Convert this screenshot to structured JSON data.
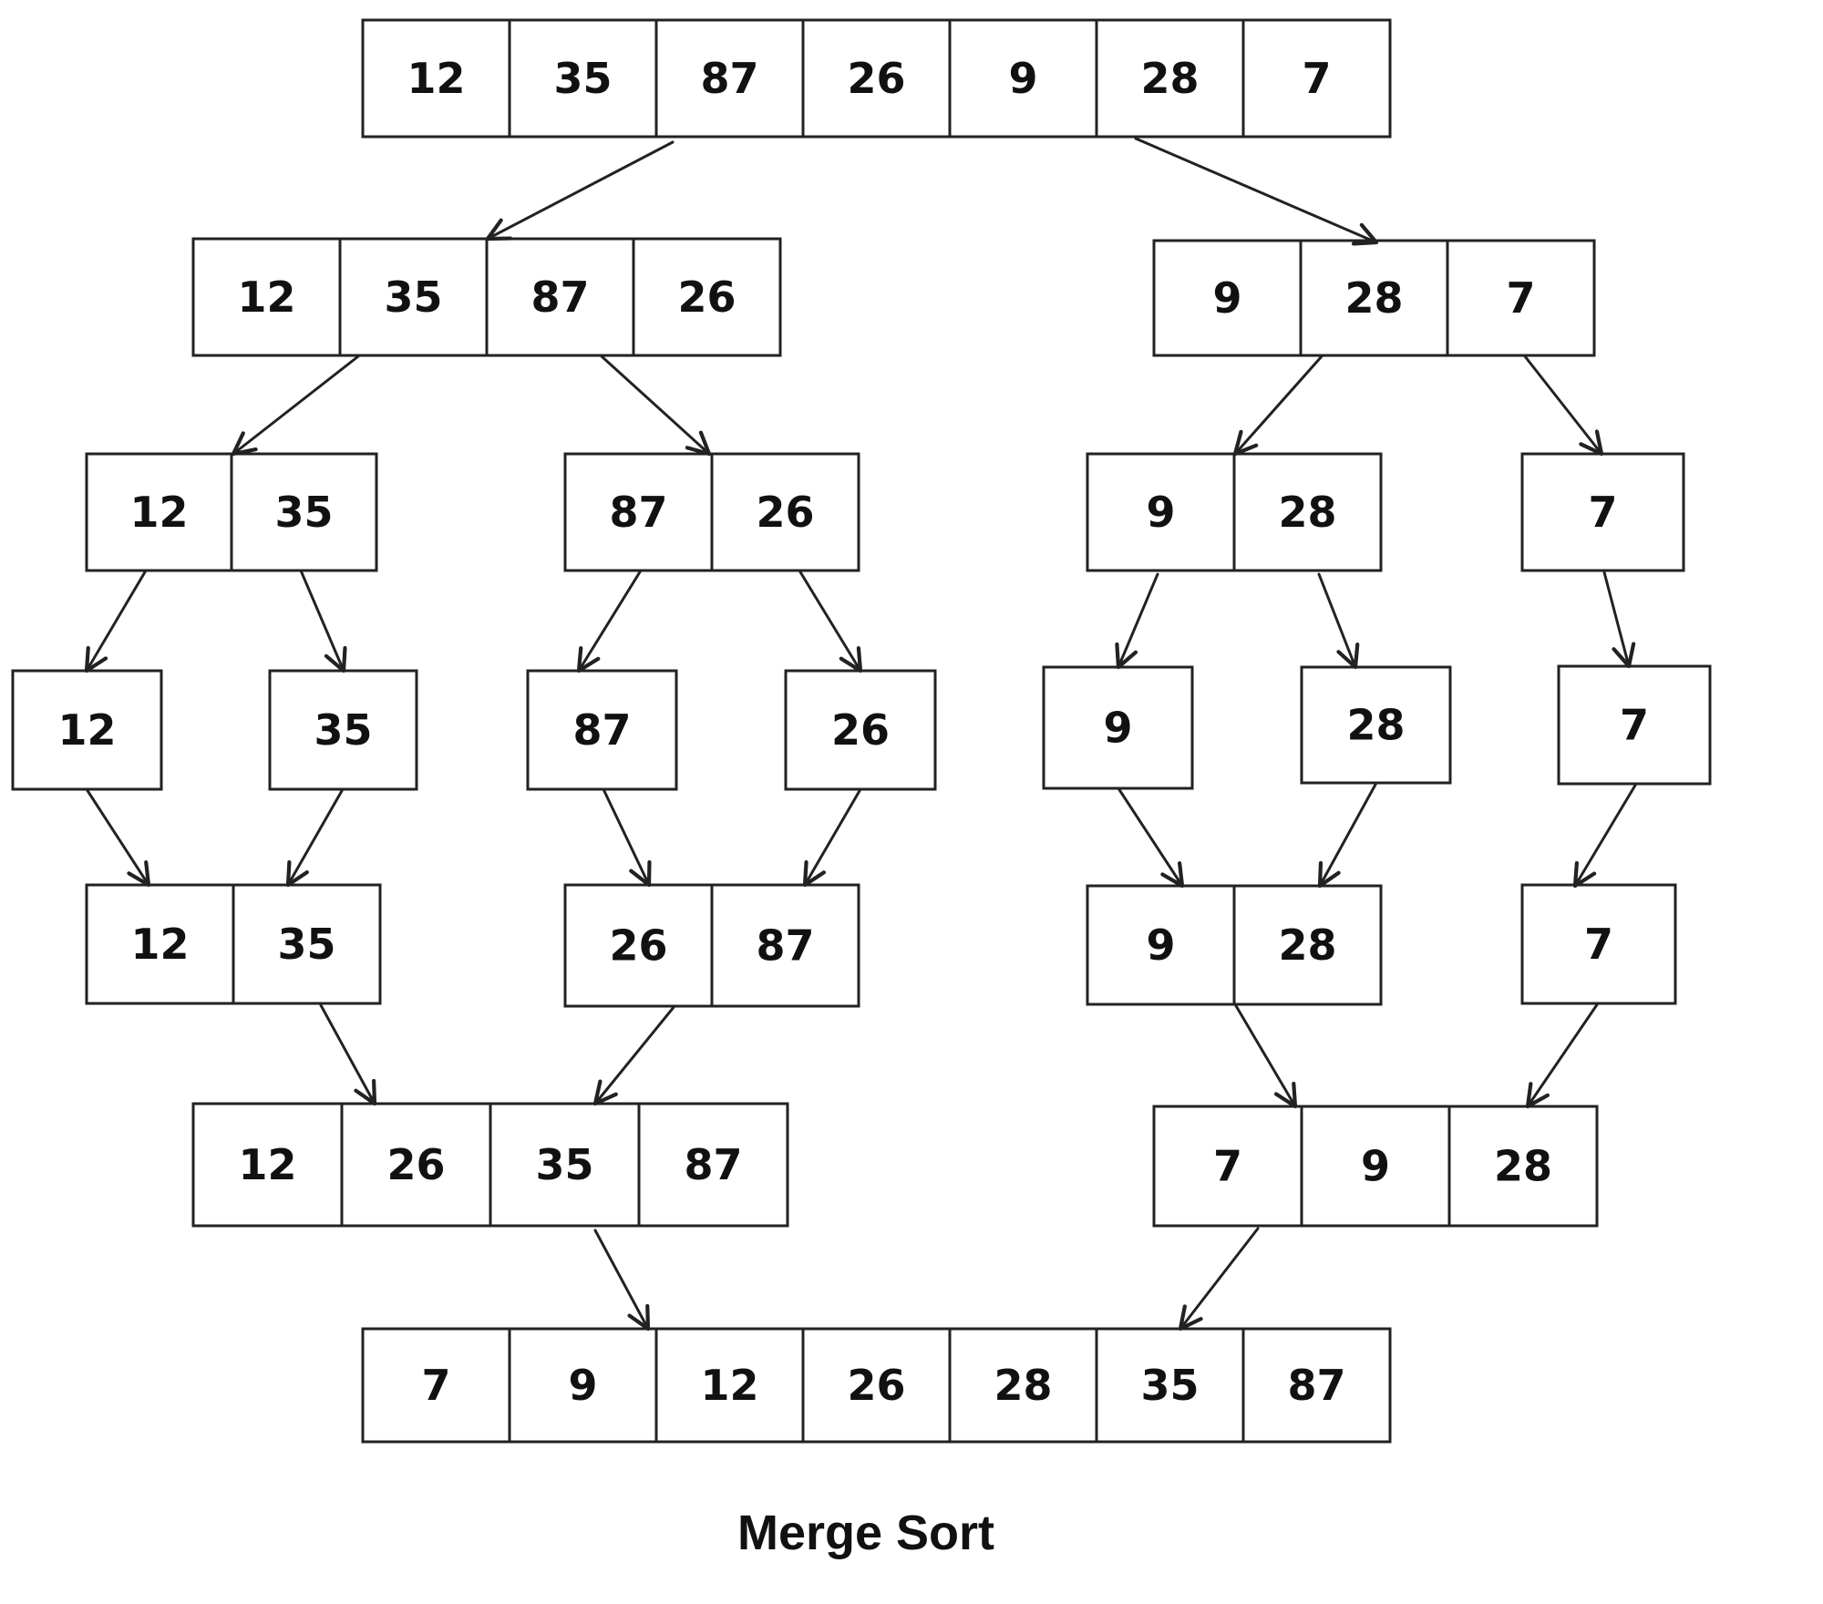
{
  "title": "Merge Sort",
  "colors": {
    "stroke": "#222222",
    "text": "#111111",
    "background": "#ffffff"
  },
  "arrays": {
    "input": [
      "12",
      "35",
      "87",
      "26",
      "9",
      "28",
      "7"
    ],
    "left_half": [
      "12",
      "35",
      "87",
      "26"
    ],
    "right_half": [
      "9",
      "28",
      "7"
    ],
    "l1": [
      "12",
      "35"
    ],
    "l2": [
      "87",
      "26"
    ],
    "r1": [
      "9",
      "28"
    ],
    "r2": [
      "7"
    ],
    "s12": [
      "12"
    ],
    "s35": [
      "35"
    ],
    "s87": [
      "87"
    ],
    "s26": [
      "26"
    ],
    "s9": [
      "9"
    ],
    "s28": [
      "28"
    ],
    "s7": [
      "7"
    ],
    "m1": [
      "12",
      "35"
    ],
    "m2": [
      "26",
      "87"
    ],
    "m3": [
      "9",
      "28"
    ],
    "m4": [
      "7"
    ],
    "ml": [
      "12",
      "26",
      "35",
      "87"
    ],
    "mr": [
      "7",
      "9",
      "28"
    ],
    "result": [
      "7",
      "9",
      "12",
      "26",
      "28",
      "35",
      "87"
    ]
  }
}
